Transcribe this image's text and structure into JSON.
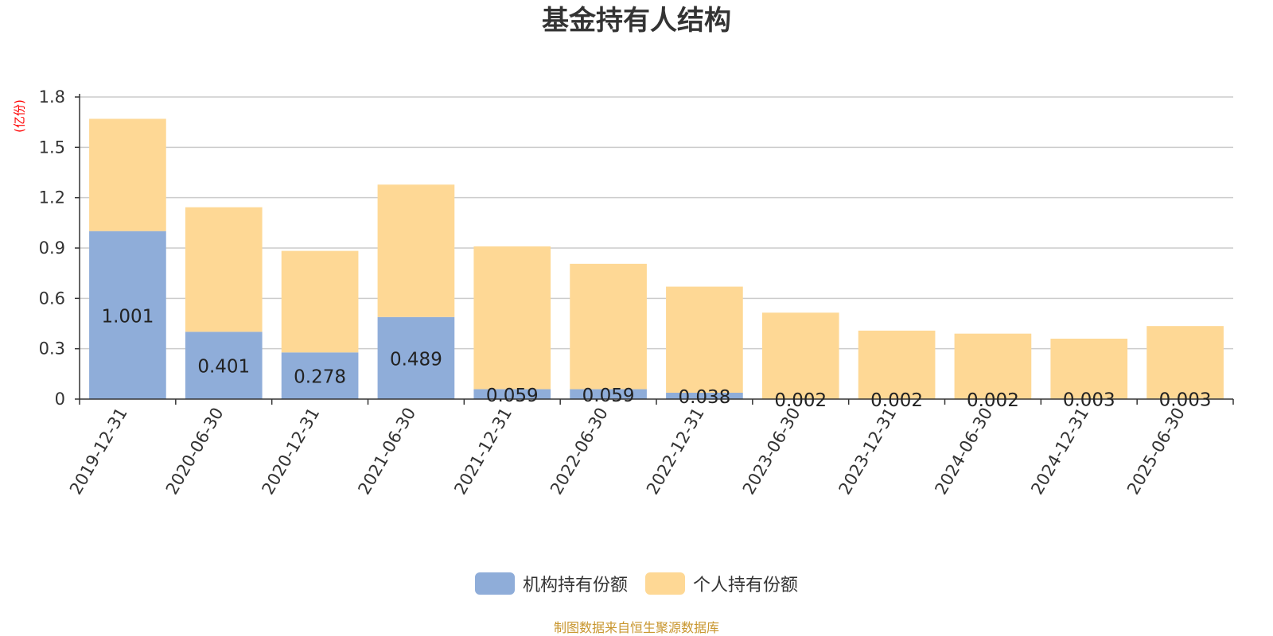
{
  "chart_data": {
    "type": "bar",
    "stacked": true,
    "title": "基金持有人结构",
    "ylabel": "(亿份)",
    "ylim": [
      0,
      1.8
    ],
    "yticks": [
      "0",
      "0.3",
      "0.6",
      "0.9",
      "1.2",
      "1.5",
      "1.8"
    ],
    "grid": true,
    "legend_position": "bottom",
    "categories": [
      "2019-12-31",
      "2020-06-30",
      "2020-12-31",
      "2021-06-30",
      "2021-12-31",
      "2022-06-30",
      "2022-12-31",
      "2023-06-30",
      "2023-12-31",
      "2024-06-30",
      "2024-12-31",
      "2025-06-30"
    ],
    "series": [
      {
        "name": "机构持有份额",
        "color": "#8fadd9",
        "values": [
          1.001,
          0.401,
          0.278,
          0.489,
          0.059,
          0.059,
          0.038,
          0.002,
          0.002,
          0.002,
          0.003,
          0.003
        ],
        "labels": [
          "1.001",
          "0.401",
          "0.278",
          "0.489",
          "0.059",
          "0.059",
          "0.038",
          "0.002",
          "0.002",
          "0.002",
          "0.003",
          "0.003"
        ]
      },
      {
        "name": "个人持有份额",
        "color": "#fed895",
        "values": [
          0.669,
          0.742,
          0.605,
          0.789,
          0.851,
          0.747,
          0.632,
          0.513,
          0.406,
          0.388,
          0.357,
          0.432
        ]
      }
    ]
  },
  "footer": {
    "source": "制图数据来自恒生聚源数据库"
  }
}
